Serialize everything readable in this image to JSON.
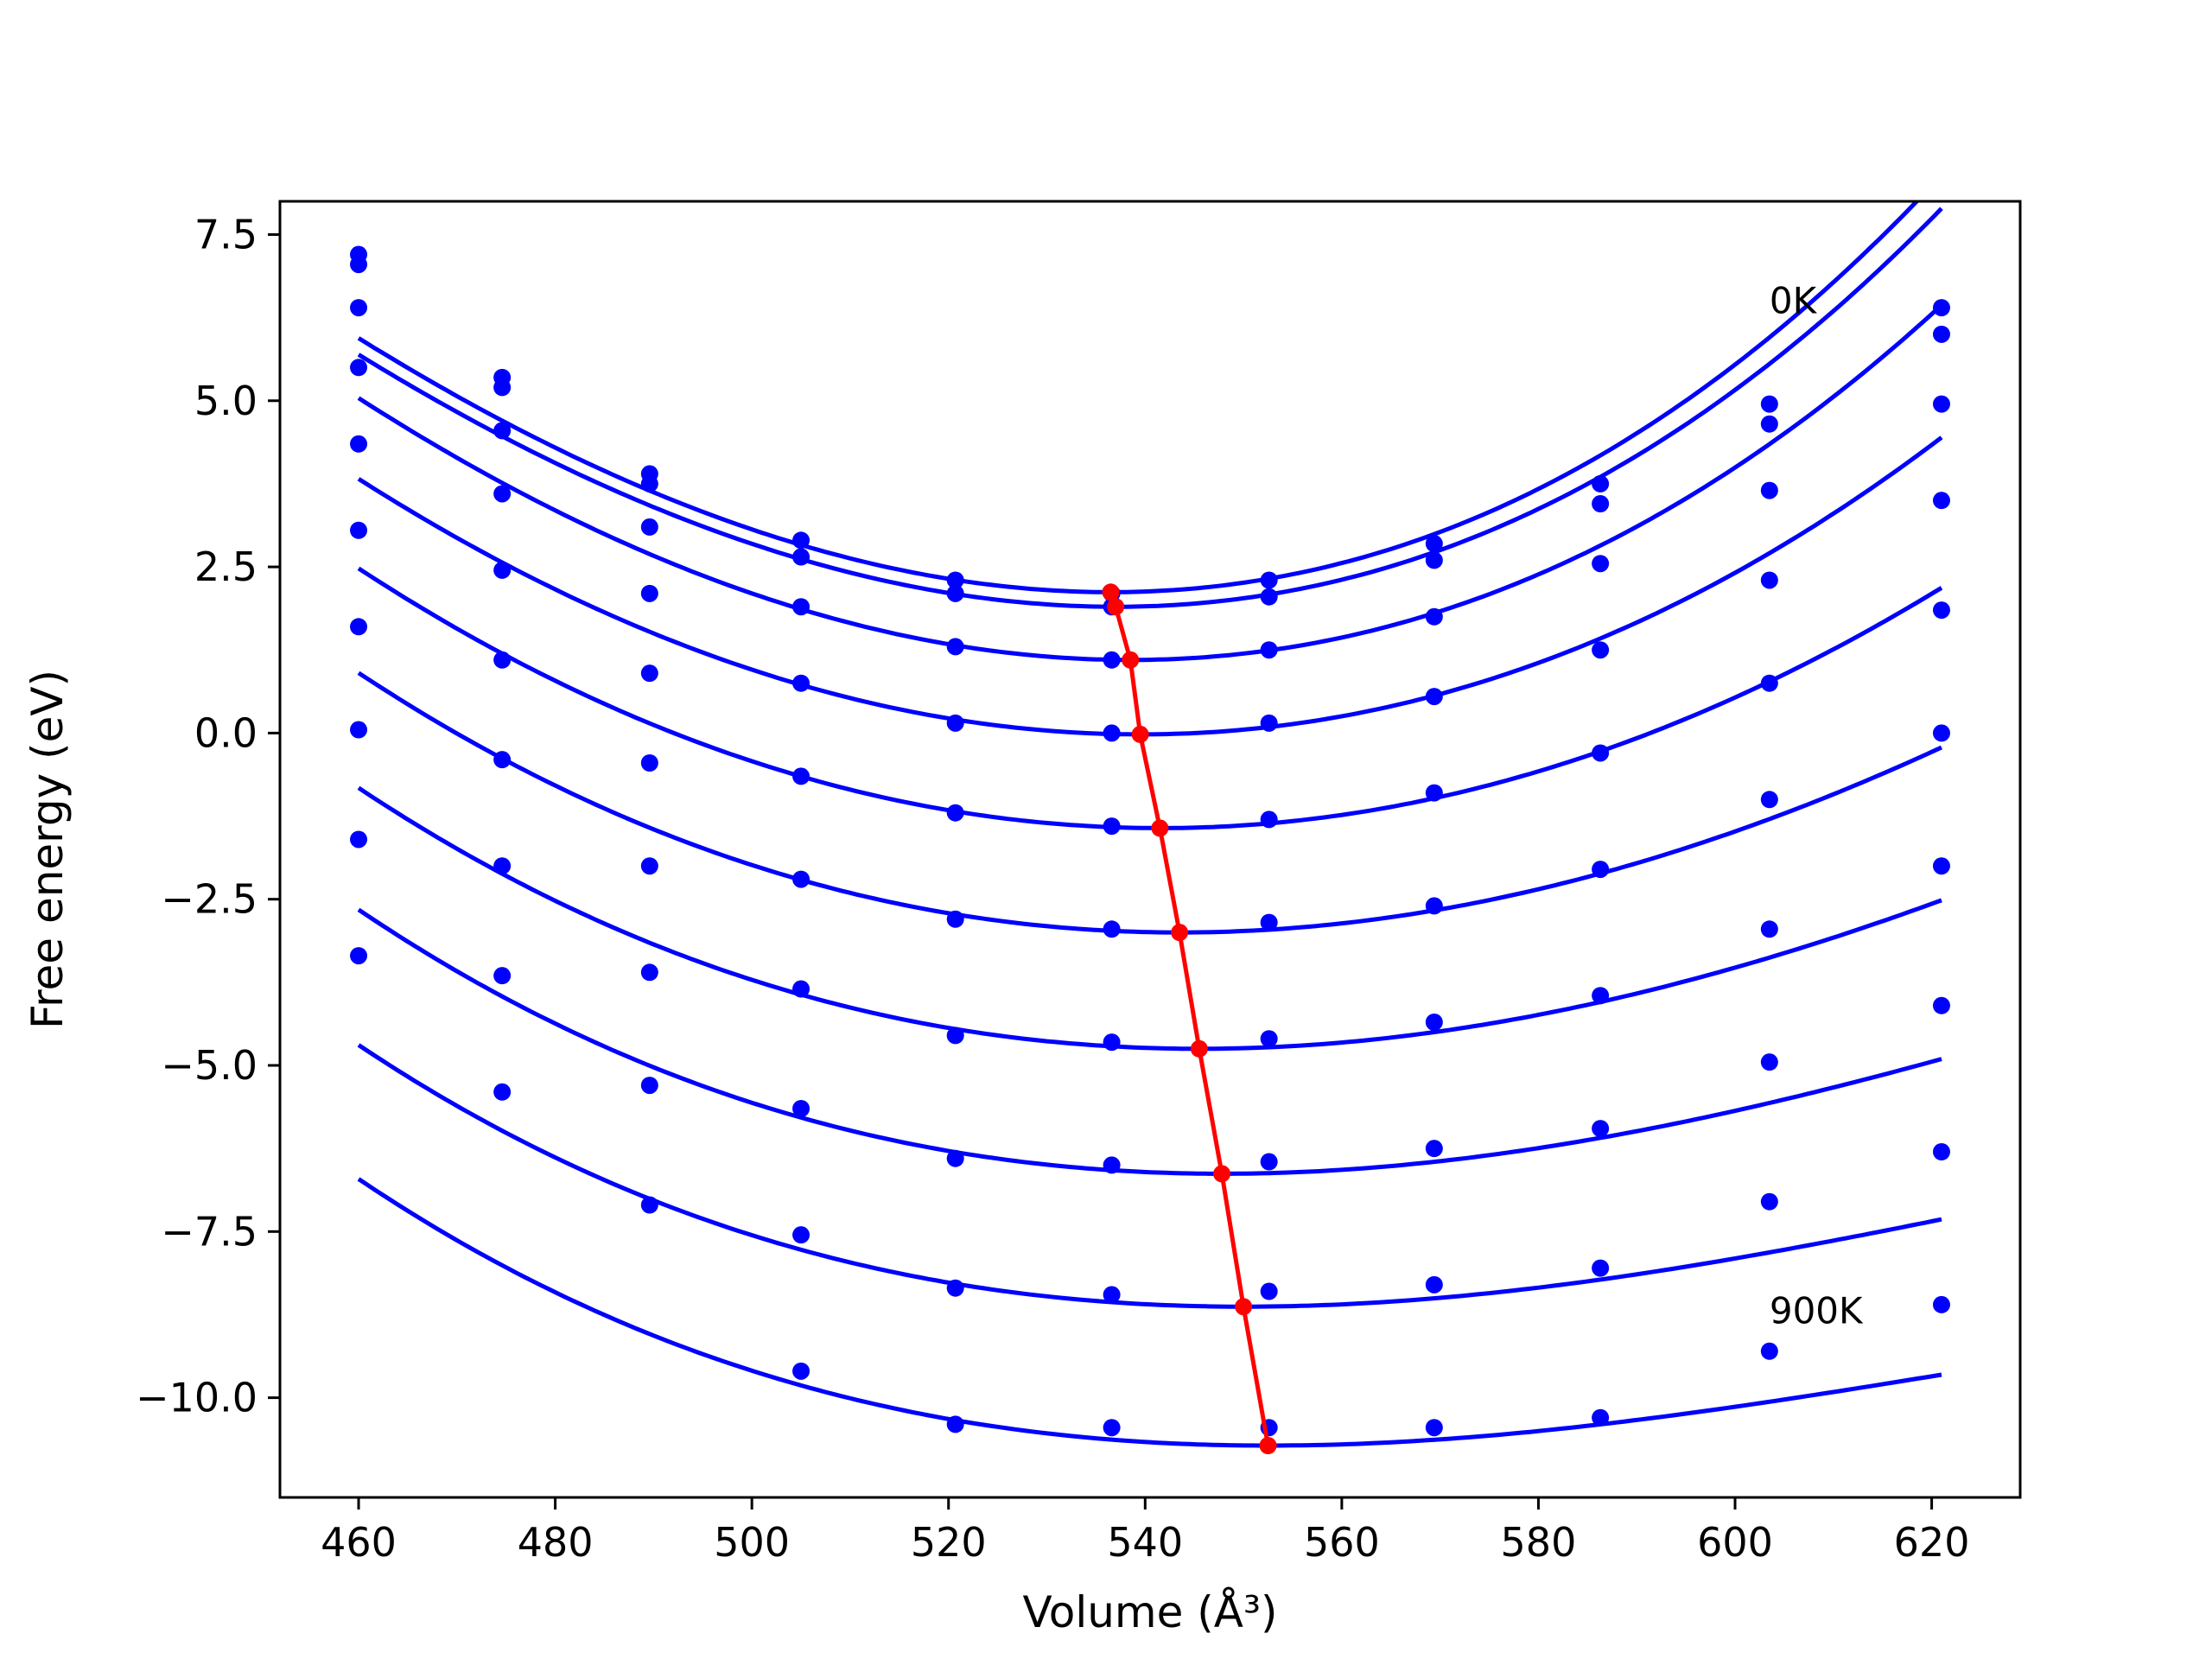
{
  "chart_data": {
    "type": "scatter",
    "title": "",
    "xlabel": "Volume (Å³)",
    "ylabel": "Free energy (eV)",
    "xlim": [
      452,
      629
    ],
    "ylim": [
      -11.5,
      8.0
    ],
    "xticks": [
      460,
      480,
      500,
      520,
      540,
      560,
      580,
      600,
      620
    ],
    "yticks": [
      7.5,
      5.0,
      2.5,
      0.0,
      -2.5,
      -5.0,
      -7.5,
      -10.0
    ],
    "xtick_labels": [
      "460",
      "480",
      "500",
      "520",
      "540",
      "560",
      "580",
      "600",
      "620"
    ],
    "ytick_labels": [
      "7.5",
      "5.0",
      "2.5",
      "0.0",
      "−2.5",
      "−5.0",
      "−7.5",
      "−10.0"
    ],
    "grid": false,
    "annotations": [
      {
        "text": "0K",
        "x": 603.5,
        "y": 6.5
      },
      {
        "text": "900K",
        "x": 603.5,
        "y": -8.7
      }
    ],
    "curve_color": "#0000ff",
    "min_line_color": "#ff0000",
    "volumes": [
      460.0,
      474.6,
      489.6,
      505.0,
      520.7,
      536.6,
      552.6,
      569.4,
      586.3,
      603.5,
      621.0
    ],
    "series": [
      {
        "points": [
          7.2,
          5.35,
          3.9,
          2.9,
          2.3,
          2.1,
          2.3,
          2.85,
          3.75,
          4.95,
          6.4
        ],
        "fit": {
          "vmin": 536.5,
          "emin": 2.12,
          "a": 0.00076,
          "b": 1.4e-06
        }
      },
      {
        "points": [
          7.05,
          5.2,
          3.75,
          2.65,
          2.1,
          1.9,
          2.05,
          2.6,
          3.45,
          4.65,
          6.0
        ],
        "fit": {
          "vmin": 537.0,
          "emin": 1.9,
          "a": 0.00074,
          "b": 1.3e-06
        }
      },
      {
        "points": [
          6.4,
          4.55,
          3.1,
          1.9,
          1.3,
          1.1,
          1.25,
          1.75,
          2.55,
          3.65,
          4.95
        ],
        "fit": {
          "vmin": 538.5,
          "emin": 1.1,
          "a": 0.00071,
          "b": 9e-07
        }
      },
      {
        "points": [
          5.5,
          3.6,
          2.1,
          0.75,
          0.15,
          0.0,
          0.15,
          0.55,
          1.25,
          2.3,
          3.5
        ],
        "fit": {
          "vmin": 539.5,
          "emin": -0.02,
          "a": 0.00064,
          "b": 4e-07
        }
      },
      {
        "points": [
          4.35,
          2.45,
          0.9,
          -0.65,
          -1.2,
          -1.4,
          -1.3,
          -0.9,
          -0.3,
          0.75,
          1.85
        ],
        "fit": {
          "vmin": 541.5,
          "emin": -1.43,
          "a": 0.00058,
          "b": -1e-07
        }
      },
      {
        "points": [
          3.05,
          1.1,
          -0.45,
          -2.2,
          -2.8,
          -2.95,
          -2.85,
          -2.6,
          -2.05,
          -1.0,
          0.0
        ],
        "fit": {
          "vmin": 543.5,
          "emin": -3.0,
          "a": 0.00051,
          "b": -6e-07
        }
      },
      {
        "points": [
          1.6,
          -0.4,
          -2.0,
          -3.85,
          -4.55,
          -4.65,
          -4.6,
          -4.35,
          -3.95,
          -2.95,
          -2.0
        ],
        "fit": {
          "vmin": 545.5,
          "emin": -4.75,
          "a": 0.00046,
          "b": -9e-07
        }
      },
      {
        "points": [
          0.05,
          -2.0,
          -3.6,
          -5.65,
          -6.4,
          -6.5,
          -6.45,
          -6.25,
          -5.95,
          -4.95,
          -4.1
        ],
        "fit": {
          "vmin": 547.8,
          "emin": -6.63,
          "a": 0.00041,
          "b": -1.2e-06
        }
      },
      {
        "points": [
          -1.6,
          -3.65,
          -5.3,
          -7.55,
          -8.35,
          -8.45,
          -8.4,
          -8.3,
          -8.05,
          -7.05,
          -6.3
        ],
        "fit": {
          "vmin": 550.0,
          "emin": -8.63,
          "a": 0.00036,
          "b": -1.4e-06
        }
      },
      {
        "points": [
          -3.35,
          -5.4,
          -7.1,
          -9.6,
          -10.4,
          -10.45,
          -10.45,
          -10.45,
          -10.3,
          -9.3,
          -8.6
        ],
        "fit": {
          "vmin": 552.5,
          "emin": -10.72,
          "a": 0.00033,
          "b": -1.5e-06
        }
      }
    ],
    "min_line": {
      "x": [
        536.5,
        537.0,
        538.5,
        539.5,
        541.5,
        543.5,
        545.5,
        547.8,
        550.0,
        552.5
      ],
      "y": [
        2.12,
        1.9,
        1.1,
        -0.02,
        -1.43,
        -3.0,
        -4.75,
        -6.63,
        -8.63,
        -10.72
      ]
    }
  }
}
